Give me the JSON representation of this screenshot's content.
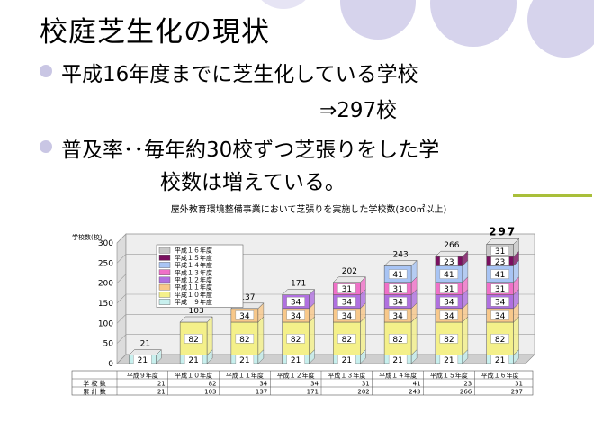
{
  "slide": {
    "title": "校庭芝生化の現状",
    "bullets": [
      {
        "line1": "平成16年度までに芝生化している学校",
        "line2": "⇒297校"
      },
      {
        "line1": "普及率･･毎年約30校ずつ芝張りをした学",
        "line2": "校数は増えている。"
      }
    ]
  },
  "colors": {
    "bullet": "#c9c6e4",
    "deco_circle": "#c9c6e4",
    "accent_rule": "#a9bf3a"
  },
  "chart_data": {
    "type": "bar",
    "stacked": true,
    "three_d": true,
    "title": "屋外教育環境整備事業において芝張りを実施した学校数(300㎡以上)",
    "ylabel": "学校数(校)",
    "ylim": [
      0,
      300
    ],
    "yticks": [
      0,
      50,
      100,
      150,
      200,
      250,
      300
    ],
    "categories": [
      "平成９年度",
      "平成１０年度",
      "平成１１年度",
      "平成１２年度",
      "平成１３年度",
      "平成１４年度",
      "平成１５年度",
      "平成１６年度"
    ],
    "series": [
      {
        "name": "平成　９年度",
        "color": "#c8f0ee",
        "values": [
          21,
          21,
          21,
          21,
          21,
          21,
          21,
          21
        ]
      },
      {
        "name": "平成１０年度",
        "color": "#f4f08a",
        "values": [
          null,
          82,
          82,
          82,
          82,
          82,
          82,
          82
        ]
      },
      {
        "name": "平成１１年度",
        "color": "#f8c88a",
        "values": [
          null,
          null,
          34,
          34,
          34,
          34,
          34,
          34
        ]
      },
      {
        "name": "平成１２年度",
        "color": "#b070e0",
        "values": [
          null,
          null,
          null,
          34,
          34,
          34,
          34,
          34
        ]
      },
      {
        "name": "平成１３年度",
        "color": "#f070c8",
        "values": [
          null,
          null,
          null,
          null,
          31,
          31,
          31,
          31
        ]
      },
      {
        "name": "平成１４年度",
        "color": "#a8c4f4",
        "values": [
          null,
          null,
          null,
          null,
          null,
          41,
          41,
          41
        ]
      },
      {
        "name": "平成１５年度",
        "color": "#7a1060",
        "values": [
          null,
          null,
          null,
          null,
          null,
          null,
          23,
          23
        ]
      },
      {
        "name": "平成１６年度",
        "color": "#c8c8c8",
        "values": [
          null,
          null,
          null,
          null,
          null,
          null,
          null,
          31
        ]
      }
    ],
    "totals": [
      "21",
      "103",
      "137",
      "171",
      "202",
      "243",
      "266",
      "297"
    ],
    "legend_position": "top-left",
    "grid": true,
    "table": {
      "rows": [
        {
          "label": "学 校 数",
          "values": [
            "21",
            "82",
            "34",
            "34",
            "31",
            "41",
            "23",
            "31"
          ]
        },
        {
          "label": "累 計 数",
          "values": [
            "21",
            "103",
            "137",
            "171",
            "202",
            "243",
            "266",
            "297"
          ]
        }
      ]
    }
  }
}
